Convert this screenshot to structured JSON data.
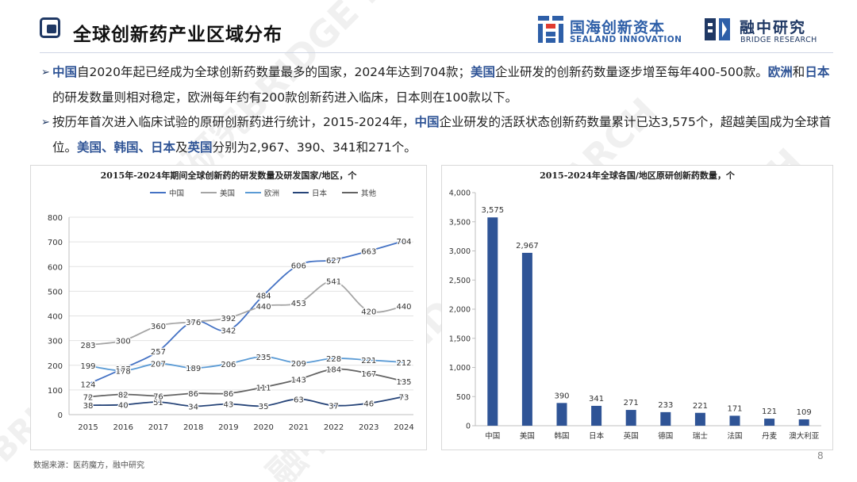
{
  "header": {
    "title": "全球创新药产业区域分布",
    "logo1_cn": "国海创新资本",
    "logo1_en": "SEALAND INNOVATION",
    "logo2_cn": "融中研究",
    "logo2_en": "BRIDGE RESEARCH"
  },
  "bullets": [
    {
      "mark": "➢",
      "parts": [
        {
          "t": "中国",
          "hl": true
        },
        {
          "t": "自2020年起已经成为全球创新药数量最多的国家，2024年达到704款；",
          "hl": false
        },
        {
          "t": "美国",
          "hl": true
        },
        {
          "t": "企业研发的创新药数量逐步增至每年400-500款。",
          "hl": false
        },
        {
          "t": "欧洲",
          "hl": true
        },
        {
          "t": "和",
          "hl": false
        },
        {
          "t": "日本",
          "hl": true
        },
        {
          "t": "的研发数量则相对稳定，欧洲每年约有200款创新药进入临床，日本则在100款以下。",
          "hl": false
        }
      ]
    },
    {
      "mark": "➢",
      "parts": [
        {
          "t": "按历年首次进入临床试验的原研创新药进行统计，2015-2024年，",
          "hl": false
        },
        {
          "t": "中国",
          "hl": true
        },
        {
          "t": "企业研发的活跃状态创新药数量累计已达3,575个，超越美国成为全球首位。",
          "hl": false
        },
        {
          "t": "美国、韩国、日本",
          "hl": true
        },
        {
          "t": "及",
          "hl": false
        },
        {
          "t": "英国",
          "hl": true
        },
        {
          "t": "分别为2,967、390、341和271个。",
          "hl": false
        }
      ]
    }
  ],
  "chart_data": [
    {
      "type": "line",
      "title": "2015年-2024年期间全球创新药的研发数量及研发国家/地区，个",
      "x": [
        2015,
        2016,
        2017,
        2018,
        2019,
        2020,
        2021,
        2022,
        2023,
        2024
      ],
      "ylim": [
        0,
        800
      ],
      "yticks": [
        0,
        100,
        200,
        300,
        400,
        500,
        600,
        700,
        800
      ],
      "legend": "top",
      "grid": true,
      "series": [
        {
          "name": "中国",
          "color": "#4472c4",
          "values": [
            124,
            187,
            257,
            378,
            342,
            484,
            606,
            627,
            663,
            704
          ]
        },
        {
          "name": "美国",
          "color": "#a5a5a5",
          "values": [
            283,
            300,
            360,
            376,
            392,
            440,
            453,
            541,
            420,
            440
          ]
        },
        {
          "name": "欧洲",
          "color": "#5b9bd5",
          "values": [
            199,
            178,
            207,
            189,
            206,
            235,
            209,
            228,
            221,
            212
          ]
        },
        {
          "name": "日本",
          "color": "#264478",
          "values": [
            38,
            40,
            51,
            34,
            43,
            35,
            63,
            37,
            46,
            73
          ]
        },
        {
          "name": "其他",
          "color": "#636363",
          "values": [
            72,
            82,
            76,
            86,
            86,
            111,
            143,
            184,
            167,
            135
          ]
        }
      ]
    },
    {
      "type": "bar",
      "title": "2015-2024年全球各国/地区原研创新药数量，个",
      "categories": [
        "中国",
        "美国",
        "韩国",
        "日本",
        "英国",
        "德国",
        "瑞士",
        "法国",
        "丹麦",
        "澳大利亚"
      ],
      "values": [
        3575,
        2967,
        390,
        341,
        271,
        233,
        221,
        171,
        121,
        109
      ],
      "value_labels": [
        "3,575",
        "2,967",
        "390",
        "341",
        "271",
        "233",
        "221",
        "171",
        "121",
        "109"
      ],
      "ylim": [
        0,
        4000
      ],
      "yticks": [
        0,
        500,
        1000,
        1500,
        2000,
        2500,
        3000,
        3500,
        4000
      ],
      "ytick_labels": [
        "0",
        "500",
        "1,000",
        "1,500",
        "2,000",
        "2,500",
        "3,000",
        "3,500",
        "4,000"
      ],
      "color": "#2f5496",
      "grid": false
    }
  ],
  "footer": {
    "source": "数据来源：医药魔方，融中研究",
    "page": "8"
  },
  "watermark": {
    "text1": "融中研究BRIDGE RESEARCH",
    "text2": "BRIDGE RESEARCH"
  }
}
